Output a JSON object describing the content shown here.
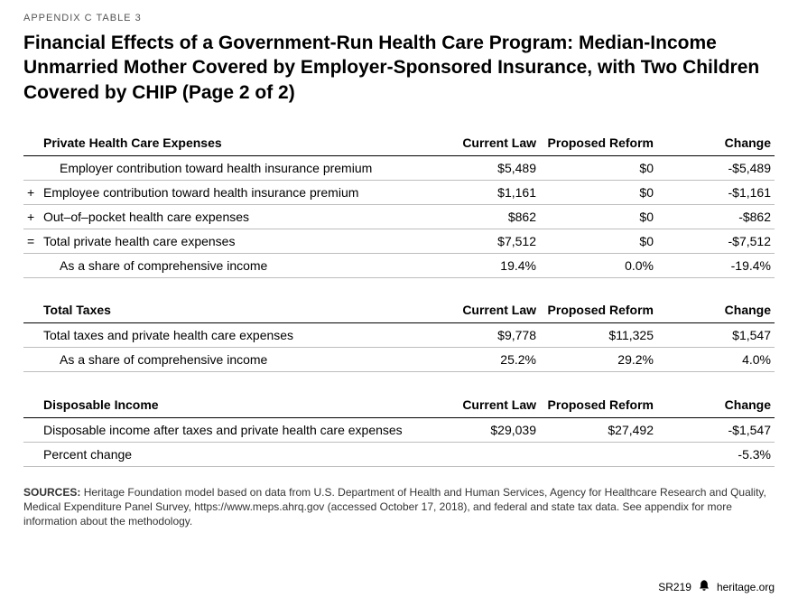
{
  "appendix_label": "APPENDIX C TABLE 3",
  "title": "Financial Effects of a Government-Run Health Care Program: Median-Income Unmarried Mother Covered by Employer-Sponsored Insurance, with Two Children Covered by CHIP (Page 2 of 2)",
  "columns": {
    "current": "Current Law",
    "proposed": "Proposed Reform",
    "change": "Change"
  },
  "sections": [
    {
      "header": "Private Health Care Expenses",
      "rows": [
        {
          "op": "",
          "label": "Employer contribution toward health insurance premium",
          "indent": true,
          "current": "$5,489",
          "proposed": "$0",
          "change": "-$5,489"
        },
        {
          "op": "+",
          "label": "Employee contribution toward health insurance premium",
          "indent": false,
          "current": "$1,161",
          "proposed": "$0",
          "change": "-$1,161"
        },
        {
          "op": "+",
          "label": "Out–of–pocket health care expenses",
          "indent": false,
          "current": "$862",
          "proposed": "$0",
          "change": "-$862"
        },
        {
          "op": "=",
          "label": "Total private health care expenses",
          "indent": false,
          "current": "$7,512",
          "proposed": "$0",
          "change": "-$7,512"
        },
        {
          "op": "",
          "label": "As a share of comprehensive income",
          "indent": true,
          "current": "19.4%",
          "proposed": "0.0%",
          "change": "-19.4%"
        }
      ]
    },
    {
      "header": "Total Taxes",
      "rows": [
        {
          "op": "",
          "label": "Total taxes and private health care expenses",
          "indent": false,
          "current": "$9,778",
          "proposed": "$11,325",
          "change": "$1,547"
        },
        {
          "op": "",
          "label": "As a share of comprehensive income",
          "indent": true,
          "current": "25.2%",
          "proposed": "29.2%",
          "change": "4.0%"
        }
      ]
    },
    {
      "header": "Disposable Income",
      "rows": [
        {
          "op": "",
          "label": "Disposable income after taxes and private health care expenses",
          "indent": false,
          "current": "$29,039",
          "proposed": "$27,492",
          "change": "-$1,547"
        },
        {
          "op": "",
          "label": "Percent change",
          "indent": false,
          "current": "",
          "proposed": "",
          "change": "-5.3%"
        }
      ]
    }
  ],
  "sources_label": "SOURCES:",
  "sources_text": "Heritage Foundation model based on data from U.S. Department of Health and Human Services, Agency for Healthcare Research and Quality, Medical Expenditure Panel Survey, https://www.meps.ahrq.gov (accessed October 17, 2018), and federal and state tax data. See appendix for more information about the methodology.",
  "footer": {
    "sr": "SR219",
    "site": "heritage.org"
  }
}
